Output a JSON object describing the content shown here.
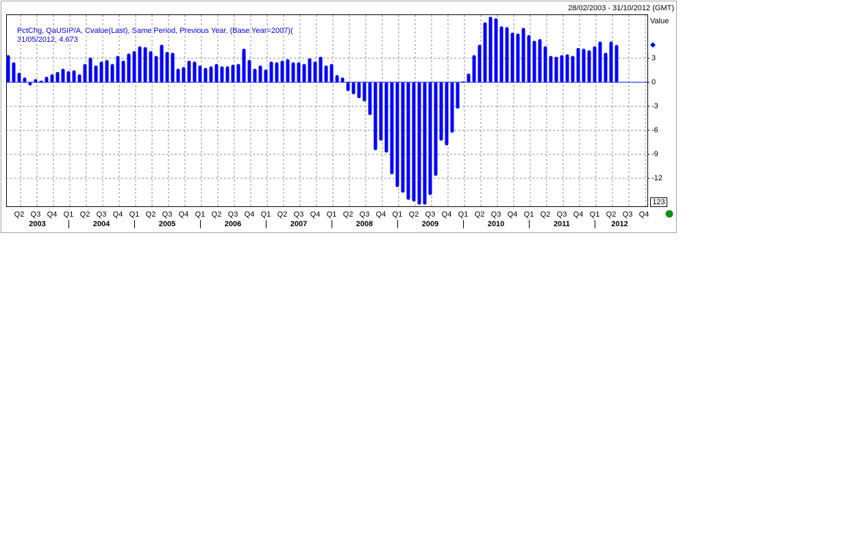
{
  "chart_data": {
    "type": "bar",
    "date_range": "28/02/2003 - 31/10/2012 (GMT)",
    "y_axis_label": "Value",
    "corner_box": "123",
    "legend_line2": "31/05/2012, 4.673",
    "categories": [
      null,
      null,
      null,
      null,
      null,
      null,
      null,
      null,
      null,
      null,
      null,
      null,
      null,
      null,
      null,
      null,
      null,
      null,
      null,
      null,
      null,
      null,
      null,
      null,
      null,
      null,
      null,
      null,
      null,
      null,
      null,
      null,
      null,
      null,
      null,
      null,
      null,
      null,
      null,
      null,
      null,
      null,
      null,
      null,
      null,
      null,
      null,
      null,
      null,
      null,
      null,
      null,
      null,
      null,
      null,
      null,
      null,
      null,
      null,
      null,
      null,
      null,
      null,
      null,
      null,
      null,
      null,
      null,
      null,
      null,
      null,
      null,
      null,
      null,
      null,
      null,
      null,
      null,
      null,
      null,
      null,
      null,
      null,
      null,
      null,
      null,
      null,
      null,
      null,
      null,
      null,
      null,
      null,
      null,
      null,
      null,
      null,
      null,
      null,
      null,
      null,
      null,
      null,
      null,
      null,
      null,
      null,
      null,
      null,
      null,
      null,
      null
    ],
    "series": [
      {
        "name": "PctChg, QaUSIP/A, Cvalue(Last), Same Period, Previous Year, (Base Year=2007)(",
        "color": "#0000ff",
        "values": [
          3.4,
          2.5,
          1.2,
          0.6,
          -0.4,
          0.4,
          0.2,
          0.7,
          1.0,
          1.3,
          1.7,
          1.4,
          1.5,
          1.0,
          2.3,
          3.1,
          2.1,
          2.6,
          2.8,
          2.3,
          3.3,
          2.7,
          3.6,
          3.9,
          4.5,
          4.4,
          3.9,
          3.3,
          4.7,
          3.8,
          3.7,
          1.7,
          1.9,
          2.7,
          2.6,
          2.1,
          1.8,
          2.0,
          2.3,
          2.0,
          2.0,
          2.2,
          2.3,
          4.2,
          2.8,
          1.7,
          2.1,
          1.6,
          2.6,
          2.5,
          2.7,
          2.9,
          2.5,
          2.5,
          2.3,
          3.0,
          2.6,
          3.2,
          2.1,
          2.3,
          0.9,
          0.6,
          -1.1,
          -1.5,
          -2.0,
          -2.4,
          -4.1,
          -8.5,
          -7.3,
          -8.8,
          -11.5,
          -13.1,
          -13.8,
          -14.7,
          -14.9,
          -15.3,
          -15.3,
          -14.1,
          -11.7,
          -7.3,
          -7.9,
          -6.3,
          -3.3,
          0.1,
          1.1,
          3.4,
          4.7,
          7.5,
          8.2,
          8.0,
          7.0,
          6.9,
          6.2,
          6.1,
          6.8,
          5.9,
          5.2,
          5.4,
          4.5,
          3.3,
          3.2,
          3.4,
          3.5,
          3.3,
          4.3,
          4.2,
          4.0,
          4.5,
          5.1,
          3.7,
          5.1,
          4.673
        ]
      }
    ],
    "quarter_labels": [
      "Q2",
      "Q3",
      "Q4",
      "Q1",
      "Q2",
      "Q3",
      "Q4",
      "Q1",
      "Q2",
      "Q3",
      "Q4",
      "Q1",
      "Q2",
      "Q3",
      "Q4",
      "Q1",
      "Q2",
      "Q3",
      "Q4",
      "Q1",
      "Q2",
      "Q3",
      "Q4",
      "Q1",
      "Q2",
      "Q3",
      "Q4",
      "Q1",
      "Q2",
      "Q3",
      "Q4",
      "Q1",
      "Q2",
      "Q3",
      "Q4",
      "Q1",
      "Q2",
      "Q3",
      "Q4"
    ],
    "year_labels": [
      "2003",
      "2004",
      "2005",
      "2006",
      "2007",
      "2008",
      "2009",
      "2010",
      "2011",
      "2012"
    ],
    "ylim": [
      -15.5,
      8.4
    ],
    "yticks": [
      3,
      0,
      -3,
      -6,
      -9,
      -12
    ],
    "grid": true
  }
}
